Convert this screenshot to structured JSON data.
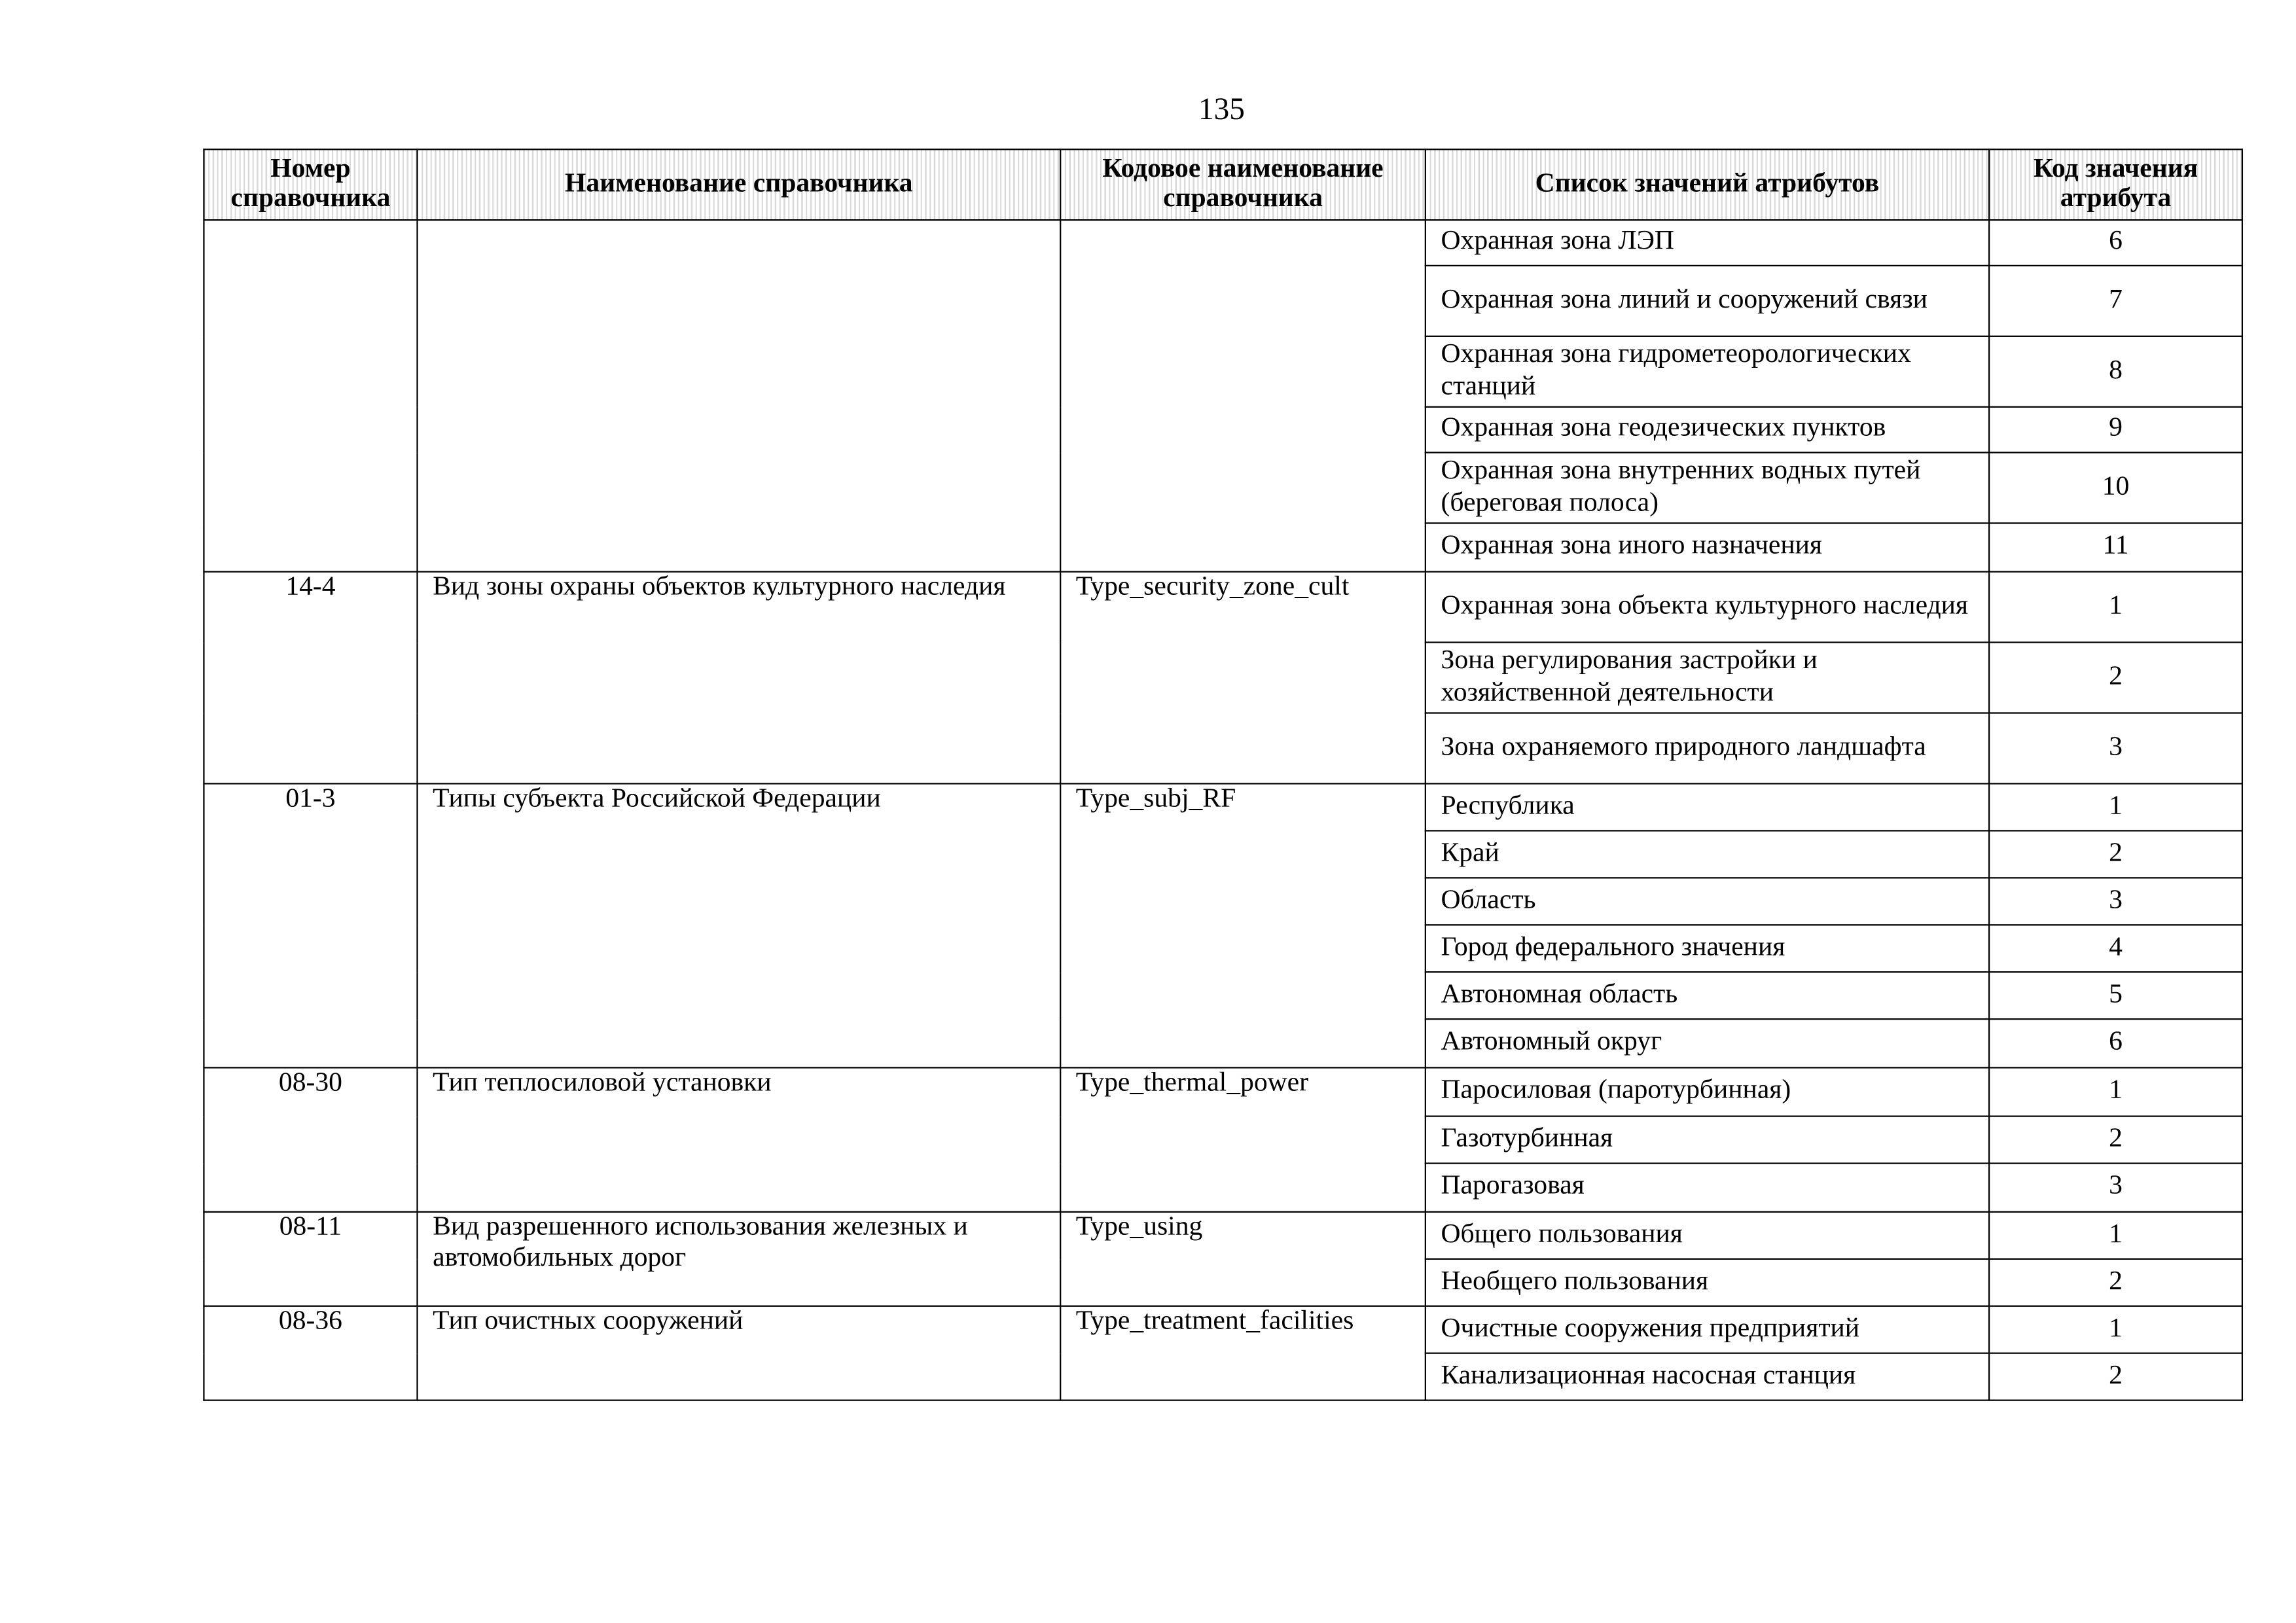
{
  "page_number": "135",
  "headers": [
    "Номер справочника",
    "Наименование справочника",
    "Кодовое наименование справочника",
    "Список значений атрибутов",
    "Код значения атрибута"
  ],
  "groups": [
    {
      "number": "",
      "name": "",
      "code_name": "",
      "items": [
        {
          "value": "Охранная зона ЛЭП",
          "code": "6"
        },
        {
          "value": "Охранная зона линий и сооружений связи",
          "code": "7"
        },
        {
          "value": "Охранная зона гидрометеорологических станций",
          "code": "8"
        },
        {
          "value": "Охранная зона геодезических пунктов",
          "code": "9"
        },
        {
          "value": "Охранная зона внутренних водных путей (береговая полоса)",
          "code": "10"
        },
        {
          "value": "Охранная зона иного назначения",
          "code": "11"
        }
      ]
    },
    {
      "number": "14-4",
      "name": "Вид зоны охраны объектов культурного наследия",
      "code_name": "Type_security_zone_cult",
      "items": [
        {
          "value": "Охранная зона объекта культурного наследия",
          "code": "1"
        },
        {
          "value": "Зона регулирования застройки и хозяйственной деятельности",
          "code": "2"
        },
        {
          "value": "Зона охраняемого природного ландшафта",
          "code": "3"
        }
      ]
    },
    {
      "number": "01-3",
      "name": "Типы субъекта Российской Федерации",
      "code_name": "Type_subj_RF",
      "items": [
        {
          "value": "Республика",
          "code": "1"
        },
        {
          "value": "Край",
          "code": "2"
        },
        {
          "value": "Область",
          "code": "3"
        },
        {
          "value": "Город федерального значения",
          "code": "4"
        },
        {
          "value": "Автономная область",
          "code": "5"
        },
        {
          "value": "Автономный округ",
          "code": "6"
        }
      ]
    },
    {
      "number": "08-30",
      "name": "Тип теплосиловой установки",
      "code_name": "Type_thermal_power",
      "items": [
        {
          "value": "Паросиловая (паротурбинная)",
          "code": "1"
        },
        {
          "value": "Газотурбинная",
          "code": "2"
        },
        {
          "value": "Парогазовая",
          "code": "3"
        }
      ]
    },
    {
      "number": "08-11",
      "name": "Вид разрешенного использования железных и автомобильных дорог",
      "code_name": "Type_using",
      "items": [
        {
          "value": "Общего пользования",
          "code": "1"
        },
        {
          "value": "Необщего пользования",
          "code": "2"
        }
      ]
    },
    {
      "number": "08-36",
      "name": "Тип очистных сооружений",
      "code_name": "Type_treatment_facilities",
      "items": [
        {
          "value": "Очистные сооружения предприятий",
          "code": "1"
        },
        {
          "value": "Канализационная насосная станция",
          "code": "2"
        }
      ]
    }
  ]
}
